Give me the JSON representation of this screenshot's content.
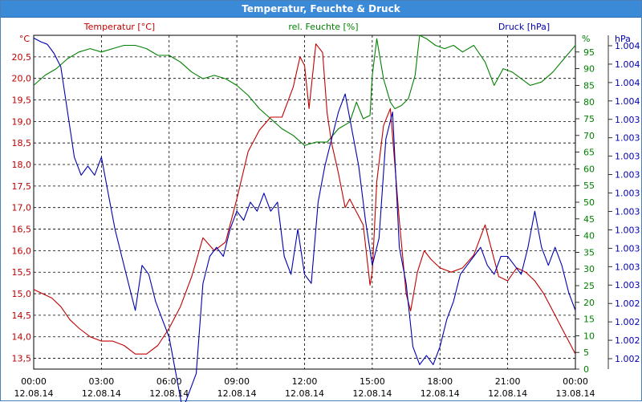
{
  "window": {
    "title": "Temperatur, Feuchte & Druck"
  },
  "colors": {
    "temperature": "#c00000",
    "humidity": "#008000",
    "pressure": "#0000b0",
    "titlebar": "#3a8ad8",
    "grid": "#000000"
  },
  "chart_data": {
    "type": "line",
    "title": "Temperatur, Feuchte & Druck",
    "grid": true,
    "x_axis": {
      "ticks": [
        {
          "time": "00:00",
          "date": "12.08.14"
        },
        {
          "time": "03:00",
          "date": "12.08.14"
        },
        {
          "time": "06:00",
          "date": "12.08.14"
        },
        {
          "time": "09:00",
          "date": "12.08.14"
        },
        {
          "time": "12:00",
          "date": "12.08.14"
        },
        {
          "time": "15:00",
          "date": "12.08.14"
        },
        {
          "time": "18:00",
          "date": "12.08.14"
        },
        {
          "time": "21:00",
          "date": "12.08.14"
        },
        {
          "time": "00:00",
          "date": "13.08.14"
        }
      ],
      "range_hours": [
        0,
        24
      ]
    },
    "axes": {
      "temperature": {
        "label": "Temperatur [°C]",
        "unit": "°C",
        "range": [
          13.25,
          21.0
        ],
        "ticks": [
          "20,5",
          "20,0",
          "19,5",
          "19,0",
          "18,5",
          "18,0",
          "17,5",
          "17,0",
          "16,5",
          "16,0",
          "15,5",
          "15,0",
          "14,5",
          "14,0",
          "13,5"
        ]
      },
      "humidity": {
        "label": "rel. Feuchte [%]",
        "unit": "%",
        "range": [
          0,
          100
        ],
        "ticks": [
          "95",
          "90",
          "85",
          "80",
          "75",
          "70",
          "65",
          "60",
          "55",
          "50",
          "45",
          "40",
          "35",
          "30",
          "25",
          "20",
          "15",
          "10",
          "5",
          "0"
        ]
      },
      "pressure": {
        "label": "Druck [hPa]",
        "unit": "hPa",
        "ticks": [
          "1.004",
          "1.004",
          "1.004",
          "1.004",
          "1.003",
          "1.003",
          "1.003",
          "1.003",
          "1.003",
          "1.003",
          "1.003",
          "1.003",
          "1.003",
          "1.003",
          "1.002",
          "1.002",
          "1.002",
          "1.002"
        ]
      }
    },
    "series": [
      {
        "name": "Temperatur [°C]",
        "axis": "temperature",
        "x": [
          0,
          0.4,
          0.8,
          1.2,
          1.6,
          2.0,
          2.5,
          3.0,
          3.5,
          4.0,
          4.5,
          5.0,
          5.5,
          6.0,
          6.5,
          7.0,
          7.5,
          8.0,
          8.5,
          9.0,
          9.5,
          10.0,
          10.5,
          11.0,
          11.5,
          11.8,
          12.0,
          12.2,
          12.5,
          12.8,
          13.0,
          13.2,
          13.5,
          13.8,
          14.0,
          14.3,
          14.6,
          14.9,
          15.0,
          15.2,
          15.5,
          15.8,
          16.0,
          16.2,
          16.5,
          16.7,
          17.0,
          17.3,
          17.6,
          18.0,
          18.5,
          19.0,
          19.5,
          20.0,
          20.3,
          20.6,
          21.0,
          21.4,
          21.8,
          22.2,
          22.6,
          23.0,
          23.4,
          23.8,
          24.0
        ],
        "values": [
          15.1,
          15.0,
          14.9,
          14.7,
          14.4,
          14.2,
          14.0,
          13.9,
          13.9,
          13.8,
          13.6,
          13.6,
          13.8,
          14.2,
          14.7,
          15.4,
          16.3,
          16.0,
          16.2,
          17.2,
          18.3,
          18.8,
          19.1,
          19.1,
          19.8,
          20.5,
          20.3,
          19.3,
          20.8,
          20.6,
          19.2,
          18.5,
          17.8,
          17.0,
          17.2,
          16.9,
          16.6,
          15.2,
          15.5,
          17.6,
          18.9,
          19.3,
          18.0,
          16.7,
          15.0,
          14.6,
          15.5,
          16.0,
          15.8,
          15.6,
          15.5,
          15.6,
          15.9,
          16.6,
          16.0,
          15.4,
          15.3,
          15.6,
          15.5,
          15.3,
          15.0,
          14.6,
          14.2,
          13.8,
          13.6
        ]
      },
      {
        "name": "rel. Feuchte [%]",
        "axis": "humidity",
        "x": [
          0,
          0.5,
          1.0,
          1.5,
          2.0,
          2.5,
          3.0,
          3.5,
          4.0,
          4.5,
          5.0,
          5.5,
          6.0,
          6.5,
          7.0,
          7.5,
          8.0,
          8.5,
          9.0,
          9.5,
          10.0,
          10.5,
          11.0,
          11.5,
          12.0,
          12.5,
          13.0,
          13.5,
          14.0,
          14.3,
          14.6,
          14.9,
          15.0,
          15.2,
          15.5,
          15.8,
          16.0,
          16.3,
          16.6,
          16.9,
          17.1,
          17.4,
          17.8,
          18.2,
          18.6,
          19.0,
          19.5,
          20.0,
          20.4,
          20.8,
          21.2,
          21.6,
          22.0,
          22.5,
          23.0,
          23.5,
          24.0
        ],
        "values": [
          85,
          88,
          90,
          93,
          95,
          96,
          95,
          96,
          97,
          97,
          96,
          94,
          94,
          92,
          89,
          87,
          88,
          87,
          85,
          82,
          78,
          75,
          72,
          70,
          67,
          68,
          68,
          72,
          74,
          80,
          75,
          76,
          88,
          99,
          87,
          80,
          78,
          79,
          81,
          88,
          100,
          99,
          97,
          96,
          97,
          95,
          97,
          92,
          85,
          90,
          89,
          87,
          85,
          86,
          89,
          93,
          97
        ]
      },
      {
        "name": "Druck [hPa]",
        "axis": "pressure",
        "x": [
          0,
          0.3,
          0.6,
          0.9,
          1.2,
          1.5,
          1.8,
          2.1,
          2.4,
          2.7,
          3.0,
          3.3,
          3.6,
          3.9,
          4.2,
          4.5,
          4.8,
          5.1,
          5.4,
          5.7,
          6.0,
          6.3,
          6.6,
          6.9,
          7.2,
          7.5,
          7.8,
          8.1,
          8.4,
          8.7,
          9.0,
          9.3,
          9.6,
          9.9,
          10.2,
          10.5,
          10.8,
          11.1,
          11.4,
          11.7,
          12.0,
          12.3,
          12.6,
          12.9,
          13.2,
          13.5,
          13.8,
          14.1,
          14.4,
          14.7,
          15.0,
          15.3,
          15.6,
          15.9,
          16.2,
          16.5,
          16.8,
          17.1,
          17.4,
          17.7,
          18.0,
          18.3,
          18.6,
          18.9,
          19.2,
          19.5,
          19.8,
          20.1,
          20.4,
          20.7,
          21.0,
          21.3,
          21.6,
          21.9,
          22.2,
          22.5,
          22.8,
          23.1,
          23.4,
          23.7,
          24.0
        ],
        "values": [
          1.00422,
          1.00418,
          1.00415,
          1.00405,
          1.0039,
          1.0034,
          1.0029,
          1.0027,
          1.0028,
          1.0027,
          1.0029,
          1.0025,
          1.0021,
          1.0018,
          1.0015,
          1.0012,
          1.0017,
          1.0016,
          1.0013,
          1.0011,
          1.0009,
          1.0005,
          1.0001,
          1.0003,
          1.0005,
          1.0015,
          1.0018,
          1.0019,
          1.0018,
          1.0021,
          1.0023,
          1.0022,
          1.0024,
          1.0023,
          1.0025,
          1.0023,
          1.0024,
          1.0018,
          1.0016,
          1.0021,
          1.0016,
          1.0015,
          1.0024,
          1.0028,
          1.0031,
          1.0034,
          1.0036,
          1.0032,
          1.0028,
          1.0022,
          1.0017,
          1.002,
          1.0031,
          1.0034,
          1.0019,
          1.0015,
          1.0008,
          1.0006,
          1.0007,
          1.0006,
          1.0008,
          1.0011,
          1.0013,
          1.0016,
          1.0017,
          1.0018,
          1.0019,
          1.0017,
          1.0016,
          1.0018,
          1.0018,
          1.0017,
          1.0016,
          1.0019,
          1.0023,
          1.0019,
          1.0017,
          1.0019,
          1.0017,
          1.0014,
          1.0012
        ]
      }
    ]
  }
}
